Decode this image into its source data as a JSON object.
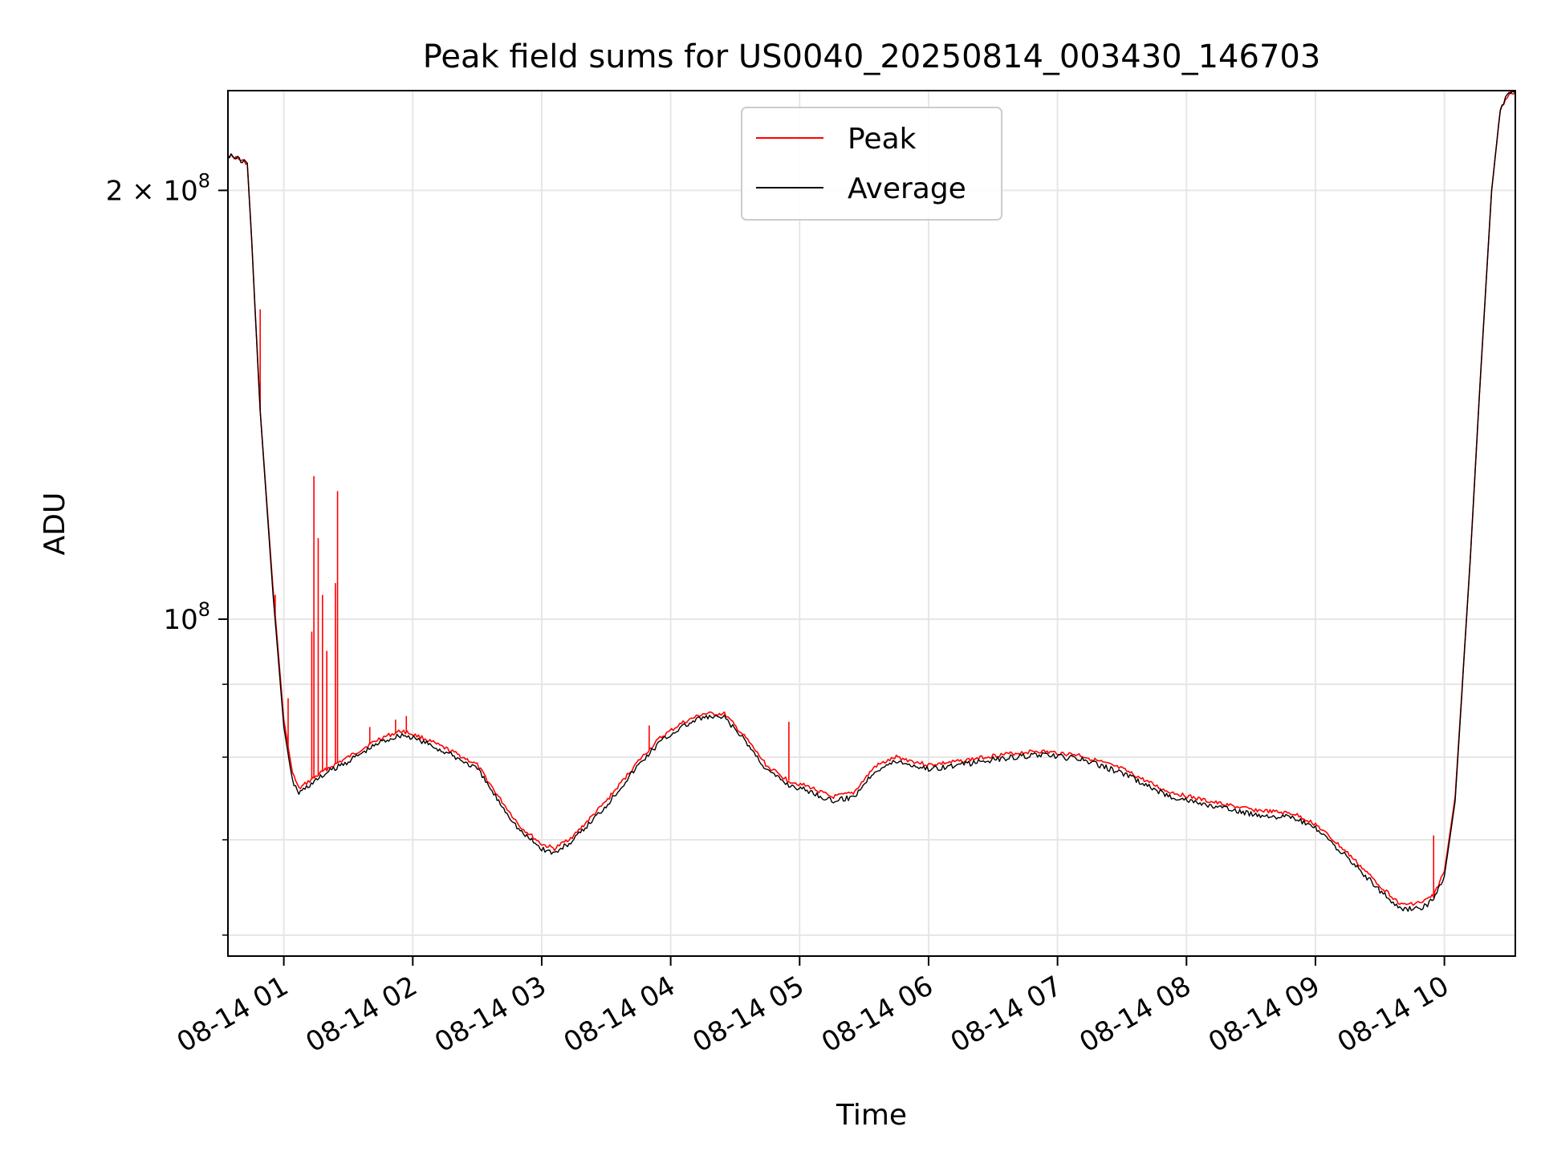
{
  "chart_data": {
    "type": "line",
    "title": "Peak field sums for US0040_20250814_003430_146703",
    "xlabel": "Time",
    "ylabel": "ADU",
    "x_axis": {
      "scale": "time",
      "range": [
        "2025-08-14T00:34",
        "2025-08-14T10:33"
      ],
      "ticks": [
        {
          "x": "2025-08-14T01:00",
          "label": "08-14 01"
        },
        {
          "x": "2025-08-14T02:00",
          "label": "08-14 02"
        },
        {
          "x": "2025-08-14T03:00",
          "label": "08-14 03"
        },
        {
          "x": "2025-08-14T04:00",
          "label": "08-14 04"
        },
        {
          "x": "2025-08-14T05:00",
          "label": "08-14 05"
        },
        {
          "x": "2025-08-14T06:00",
          "label": "08-14 06"
        },
        {
          "x": "2025-08-14T07:00",
          "label": "08-14 07"
        },
        {
          "x": "2025-08-14T08:00",
          "label": "08-14 08"
        },
        {
          "x": "2025-08-14T09:00",
          "label": "08-14 09"
        },
        {
          "x": "2025-08-14T10:00",
          "label": "08-14 10"
        }
      ]
    },
    "y_axis": {
      "scale": "log",
      "range": [
        58000000,
        235000000
      ],
      "major_ticks": [
        {
          "y": 100000000,
          "label": "10^8",
          "base": "10",
          "exp": "8"
        },
        {
          "y": 200000000,
          "label": "2×10^8",
          "base": "2 × 10",
          "exp": "8"
        }
      ],
      "minor_ticks": [
        60000000,
        70000000,
        80000000,
        90000000
      ]
    },
    "grid": true,
    "legend": {
      "position": "top-center"
    },
    "series": [
      {
        "name": "Peak",
        "color": "#ff0000",
        "points": [
          [
            "2025-08-14T00:34",
            212000000
          ],
          [
            "2025-08-14T00:40",
            210000000
          ],
          [
            "2025-08-14T00:43",
            209000000
          ],
          [
            "2025-08-14T00:45",
            185000000
          ],
          [
            "2025-08-14T00:49",
            140000000
          ],
          [
            "2025-08-14T00:55",
            105000000
          ],
          [
            "2025-08-14T01:00",
            85000000
          ],
          [
            "2025-08-14T01:04",
            78000000
          ],
          [
            "2025-08-14T01:07",
            76000000
          ],
          [
            "2025-08-14T01:12",
            77000000
          ],
          [
            "2025-08-14T01:20",
            78500000
          ],
          [
            "2025-08-14T01:30",
            80000000
          ],
          [
            "2025-08-14T01:45",
            82500000
          ],
          [
            "2025-08-14T01:55",
            83500000
          ],
          [
            "2025-08-14T02:05",
            82500000
          ],
          [
            "2025-08-14T02:20",
            80500000
          ],
          [
            "2025-08-14T02:30",
            79000000
          ],
          [
            "2025-08-14T02:40",
            75000000
          ],
          [
            "2025-08-14T02:50",
            71500000
          ],
          [
            "2025-08-14T03:00",
            69500000
          ],
          [
            "2025-08-14T03:06",
            69000000
          ],
          [
            "2025-08-14T03:15",
            70500000
          ],
          [
            "2025-08-14T03:30",
            74500000
          ],
          [
            "2025-08-14T03:45",
            79500000
          ],
          [
            "2025-08-14T03:55",
            82500000
          ],
          [
            "2025-08-14T04:05",
            84500000
          ],
          [
            "2025-08-14T04:15",
            85800000
          ],
          [
            "2025-08-14T04:25",
            85800000
          ],
          [
            "2025-08-14T04:35",
            82500000
          ],
          [
            "2025-08-14T04:45",
            78800000
          ],
          [
            "2025-08-14T04:55",
            77000000
          ],
          [
            "2025-08-14T05:05",
            76200000
          ],
          [
            "2025-08-14T05:15",
            75000000
          ],
          [
            "2025-08-14T05:25",
            75500000
          ],
          [
            "2025-08-14T05:35",
            78800000
          ],
          [
            "2025-08-14T05:45",
            80000000
          ],
          [
            "2025-08-14T06:00",
            79000000
          ],
          [
            "2025-08-14T06:15",
            79500000
          ],
          [
            "2025-08-14T06:30",
            80200000
          ],
          [
            "2025-08-14T06:50",
            80800000
          ],
          [
            "2025-08-14T07:10",
            80300000
          ],
          [
            "2025-08-14T07:30",
            78500000
          ],
          [
            "2025-08-14T07:50",
            75800000
          ],
          [
            "2025-08-14T08:10",
            74500000
          ],
          [
            "2025-08-14T08:30",
            73500000
          ],
          [
            "2025-08-14T08:50",
            73000000
          ],
          [
            "2025-08-14T09:00",
            71800000
          ],
          [
            "2025-08-14T09:15",
            68500000
          ],
          [
            "2025-08-14T09:30",
            65000000
          ],
          [
            "2025-08-14T09:40",
            63000000
          ],
          [
            "2025-08-14T09:50",
            63300000
          ],
          [
            "2025-08-14T09:55",
            64000000
          ],
          [
            "2025-08-14T10:00",
            66500000
          ],
          [
            "2025-08-14T10:05",
            75000000
          ],
          [
            "2025-08-14T10:12",
            110000000
          ],
          [
            "2025-08-14T10:17",
            150000000
          ],
          [
            "2025-08-14T10:22",
            200000000
          ],
          [
            "2025-08-14T10:26",
            228000000
          ],
          [
            "2025-08-14T10:30",
            234000000
          ],
          [
            "2025-08-14T10:33",
            234000000
          ]
        ],
        "spikes": [
          [
            "2025-08-14T00:49",
            165000000
          ],
          [
            "2025-08-14T00:56",
            104000000
          ],
          [
            "2025-08-14T01:02",
            88000000
          ],
          [
            "2025-08-14T01:13",
            98000000
          ],
          [
            "2025-08-14T01:14",
            126000000
          ],
          [
            "2025-08-14T01:16",
            114000000
          ],
          [
            "2025-08-14T01:18",
            104000000
          ],
          [
            "2025-08-14T01:20",
            95000000
          ],
          [
            "2025-08-14T01:24",
            106000000
          ],
          [
            "2025-08-14T01:25",
            123000000
          ],
          [
            "2025-08-14T01:40",
            84000000
          ],
          [
            "2025-08-14T01:52",
            85000000
          ],
          [
            "2025-08-14T01:57",
            85500000
          ],
          [
            "2025-08-14T03:50",
            84200000
          ],
          [
            "2025-08-14T04:55",
            84700000
          ],
          [
            "2025-08-14T09:55",
            70500000
          ]
        ]
      },
      {
        "name": "Average",
        "color": "#000000",
        "points": [
          [
            "2025-08-14T00:34",
            212000000
          ],
          [
            "2025-08-14T00:40",
            210000000
          ],
          [
            "2025-08-14T00:43",
            209000000
          ],
          [
            "2025-08-14T00:45",
            185000000
          ],
          [
            "2025-08-14T00:49",
            140000000
          ],
          [
            "2025-08-14T00:55",
            104000000
          ],
          [
            "2025-08-14T01:00",
            84000000
          ],
          [
            "2025-08-14T01:04",
            77000000
          ],
          [
            "2025-08-14T01:07",
            75500000
          ],
          [
            "2025-08-14T01:12",
            76500000
          ],
          [
            "2025-08-14T01:20",
            78000000
          ],
          [
            "2025-08-14T01:30",
            79500000
          ],
          [
            "2025-08-14T01:45",
            82000000
          ],
          [
            "2025-08-14T01:55",
            83000000
          ],
          [
            "2025-08-14T02:05",
            82000000
          ],
          [
            "2025-08-14T02:20",
            80000000
          ],
          [
            "2025-08-14T02:30",
            78500000
          ],
          [
            "2025-08-14T02:40",
            74500000
          ],
          [
            "2025-08-14T02:50",
            71000000
          ],
          [
            "2025-08-14T03:00",
            69000000
          ],
          [
            "2025-08-14T03:06",
            68500000
          ],
          [
            "2025-08-14T03:15",
            70000000
          ],
          [
            "2025-08-14T03:30",
            74000000
          ],
          [
            "2025-08-14T03:45",
            79000000
          ],
          [
            "2025-08-14T03:55",
            82000000
          ],
          [
            "2025-08-14T04:05",
            84000000
          ],
          [
            "2025-08-14T04:15",
            85300000
          ],
          [
            "2025-08-14T04:25",
            85300000
          ],
          [
            "2025-08-14T04:35",
            82000000
          ],
          [
            "2025-08-14T04:45",
            78300000
          ],
          [
            "2025-08-14T04:55",
            76500000
          ],
          [
            "2025-08-14T05:05",
            75700000
          ],
          [
            "2025-08-14T05:15",
            74500000
          ],
          [
            "2025-08-14T05:25",
            75000000
          ],
          [
            "2025-08-14T05:35",
            78300000
          ],
          [
            "2025-08-14T05:45",
            79500000
          ],
          [
            "2025-08-14T06:00",
            78500000
          ],
          [
            "2025-08-14T06:15",
            79000000
          ],
          [
            "2025-08-14T06:30",
            79700000
          ],
          [
            "2025-08-14T06:50",
            80300000
          ],
          [
            "2025-08-14T07:10",
            79800000
          ],
          [
            "2025-08-14T07:30",
            78000000
          ],
          [
            "2025-08-14T07:50",
            75300000
          ],
          [
            "2025-08-14T08:10",
            74000000
          ],
          [
            "2025-08-14T08:30",
            73000000
          ],
          [
            "2025-08-14T08:50",
            72500000
          ],
          [
            "2025-08-14T09:00",
            71300000
          ],
          [
            "2025-08-14T09:15",
            68000000
          ],
          [
            "2025-08-14T09:30",
            64500000
          ],
          [
            "2025-08-14T09:40",
            62500000
          ],
          [
            "2025-08-14T09:50",
            62800000
          ],
          [
            "2025-08-14T09:55",
            63500000
          ],
          [
            "2025-08-14T10:00",
            66000000
          ],
          [
            "2025-08-14T10:05",
            74500000
          ],
          [
            "2025-08-14T10:12",
            110000000
          ],
          [
            "2025-08-14T10:17",
            150000000
          ],
          [
            "2025-08-14T10:22",
            200000000
          ],
          [
            "2025-08-14T10:26",
            228000000
          ],
          [
            "2025-08-14T10:30",
            234000000
          ],
          [
            "2025-08-14T10:33",
            234000000
          ]
        ]
      }
    ]
  }
}
